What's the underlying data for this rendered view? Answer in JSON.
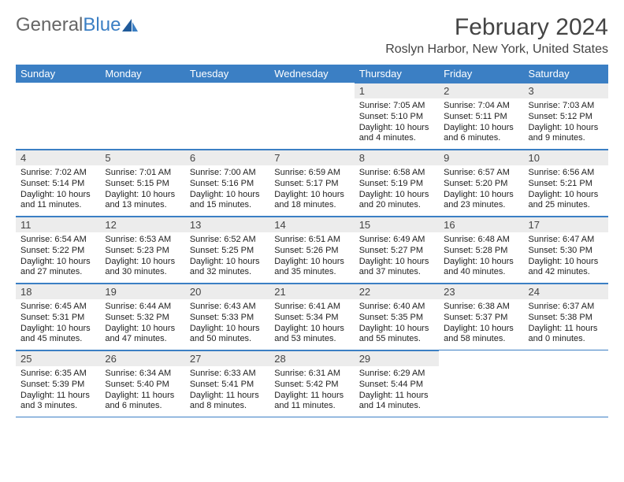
{
  "logo": {
    "text_gray": "General",
    "text_blue": "Blue"
  },
  "title": "February 2024",
  "subtitle": "Roslyn Harbor, New York, United States",
  "headers": [
    "Sunday",
    "Monday",
    "Tuesday",
    "Wednesday",
    "Thursday",
    "Friday",
    "Saturday"
  ],
  "colors": {
    "header_bg": "#3b7fc4",
    "header_fg": "#ffffff",
    "daynum_bg": "#ececec",
    "rule": "#3b7fc4",
    "title_fg": "#444444",
    "text_fg": "#222222",
    "logo_gray": "#666666",
    "logo_blue": "#3b7fc4",
    "bg": "#ffffff"
  },
  "first_weekday_index": 4,
  "days": [
    {
      "n": "1",
      "sunrise": "Sunrise: 7:05 AM",
      "sunset": "Sunset: 5:10 PM",
      "daylight": "Daylight: 10 hours and 4 minutes."
    },
    {
      "n": "2",
      "sunrise": "Sunrise: 7:04 AM",
      "sunset": "Sunset: 5:11 PM",
      "daylight": "Daylight: 10 hours and 6 minutes."
    },
    {
      "n": "3",
      "sunrise": "Sunrise: 7:03 AM",
      "sunset": "Sunset: 5:12 PM",
      "daylight": "Daylight: 10 hours and 9 minutes."
    },
    {
      "n": "4",
      "sunrise": "Sunrise: 7:02 AM",
      "sunset": "Sunset: 5:14 PM",
      "daylight": "Daylight: 10 hours and 11 minutes."
    },
    {
      "n": "5",
      "sunrise": "Sunrise: 7:01 AM",
      "sunset": "Sunset: 5:15 PM",
      "daylight": "Daylight: 10 hours and 13 minutes."
    },
    {
      "n": "6",
      "sunrise": "Sunrise: 7:00 AM",
      "sunset": "Sunset: 5:16 PM",
      "daylight": "Daylight: 10 hours and 15 minutes."
    },
    {
      "n": "7",
      "sunrise": "Sunrise: 6:59 AM",
      "sunset": "Sunset: 5:17 PM",
      "daylight": "Daylight: 10 hours and 18 minutes."
    },
    {
      "n": "8",
      "sunrise": "Sunrise: 6:58 AM",
      "sunset": "Sunset: 5:19 PM",
      "daylight": "Daylight: 10 hours and 20 minutes."
    },
    {
      "n": "9",
      "sunrise": "Sunrise: 6:57 AM",
      "sunset": "Sunset: 5:20 PM",
      "daylight": "Daylight: 10 hours and 23 minutes."
    },
    {
      "n": "10",
      "sunrise": "Sunrise: 6:56 AM",
      "sunset": "Sunset: 5:21 PM",
      "daylight": "Daylight: 10 hours and 25 minutes."
    },
    {
      "n": "11",
      "sunrise": "Sunrise: 6:54 AM",
      "sunset": "Sunset: 5:22 PM",
      "daylight": "Daylight: 10 hours and 27 minutes."
    },
    {
      "n": "12",
      "sunrise": "Sunrise: 6:53 AM",
      "sunset": "Sunset: 5:23 PM",
      "daylight": "Daylight: 10 hours and 30 minutes."
    },
    {
      "n": "13",
      "sunrise": "Sunrise: 6:52 AM",
      "sunset": "Sunset: 5:25 PM",
      "daylight": "Daylight: 10 hours and 32 minutes."
    },
    {
      "n": "14",
      "sunrise": "Sunrise: 6:51 AM",
      "sunset": "Sunset: 5:26 PM",
      "daylight": "Daylight: 10 hours and 35 minutes."
    },
    {
      "n": "15",
      "sunrise": "Sunrise: 6:49 AM",
      "sunset": "Sunset: 5:27 PM",
      "daylight": "Daylight: 10 hours and 37 minutes."
    },
    {
      "n": "16",
      "sunrise": "Sunrise: 6:48 AM",
      "sunset": "Sunset: 5:28 PM",
      "daylight": "Daylight: 10 hours and 40 minutes."
    },
    {
      "n": "17",
      "sunrise": "Sunrise: 6:47 AM",
      "sunset": "Sunset: 5:30 PM",
      "daylight": "Daylight: 10 hours and 42 minutes."
    },
    {
      "n": "18",
      "sunrise": "Sunrise: 6:45 AM",
      "sunset": "Sunset: 5:31 PM",
      "daylight": "Daylight: 10 hours and 45 minutes."
    },
    {
      "n": "19",
      "sunrise": "Sunrise: 6:44 AM",
      "sunset": "Sunset: 5:32 PM",
      "daylight": "Daylight: 10 hours and 47 minutes."
    },
    {
      "n": "20",
      "sunrise": "Sunrise: 6:43 AM",
      "sunset": "Sunset: 5:33 PM",
      "daylight": "Daylight: 10 hours and 50 minutes."
    },
    {
      "n": "21",
      "sunrise": "Sunrise: 6:41 AM",
      "sunset": "Sunset: 5:34 PM",
      "daylight": "Daylight: 10 hours and 53 minutes."
    },
    {
      "n": "22",
      "sunrise": "Sunrise: 6:40 AM",
      "sunset": "Sunset: 5:35 PM",
      "daylight": "Daylight: 10 hours and 55 minutes."
    },
    {
      "n": "23",
      "sunrise": "Sunrise: 6:38 AM",
      "sunset": "Sunset: 5:37 PM",
      "daylight": "Daylight: 10 hours and 58 minutes."
    },
    {
      "n": "24",
      "sunrise": "Sunrise: 6:37 AM",
      "sunset": "Sunset: 5:38 PM",
      "daylight": "Daylight: 11 hours and 0 minutes."
    },
    {
      "n": "25",
      "sunrise": "Sunrise: 6:35 AM",
      "sunset": "Sunset: 5:39 PM",
      "daylight": "Daylight: 11 hours and 3 minutes."
    },
    {
      "n": "26",
      "sunrise": "Sunrise: 6:34 AM",
      "sunset": "Sunset: 5:40 PM",
      "daylight": "Daylight: 11 hours and 6 minutes."
    },
    {
      "n": "27",
      "sunrise": "Sunrise: 6:33 AM",
      "sunset": "Sunset: 5:41 PM",
      "daylight": "Daylight: 11 hours and 8 minutes."
    },
    {
      "n": "28",
      "sunrise": "Sunrise: 6:31 AM",
      "sunset": "Sunset: 5:42 PM",
      "daylight": "Daylight: 11 hours and 11 minutes."
    },
    {
      "n": "29",
      "sunrise": "Sunrise: 6:29 AM",
      "sunset": "Sunset: 5:44 PM",
      "daylight": "Daylight: 11 hours and 14 minutes."
    }
  ]
}
